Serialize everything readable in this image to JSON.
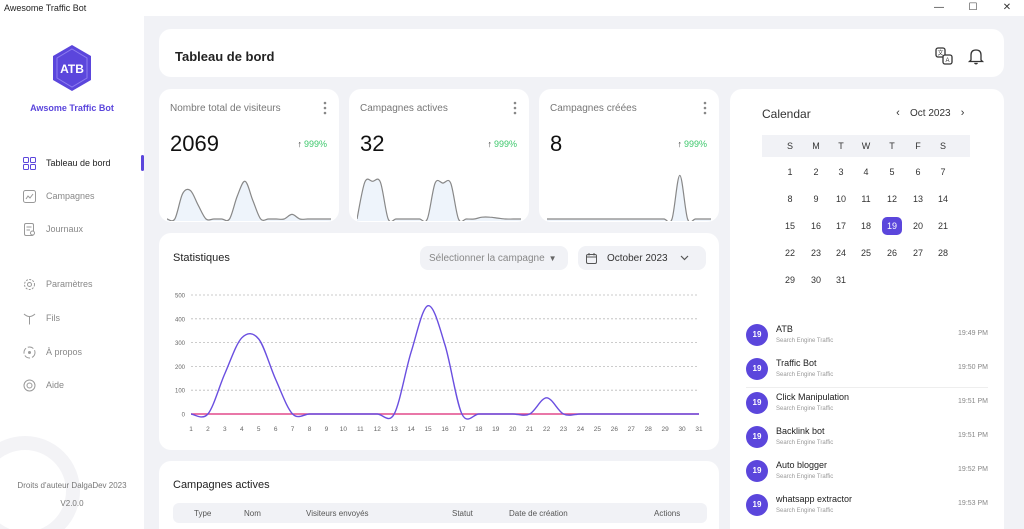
{
  "window": {
    "title": "Awesome Traffic Bot",
    "min": "—",
    "max": "☐",
    "close": "✕"
  },
  "sidebar": {
    "brand": "Awsome Traffic Bot",
    "logo_text": "ATB",
    "items": [
      {
        "label": "Tableau de bord",
        "icon": "dashboard-icon"
      },
      {
        "label": "Campagnes",
        "icon": "campaign-icon"
      },
      {
        "label": "Journaux",
        "icon": "logs-icon"
      },
      {
        "label": "Paramètres",
        "icon": "settings-icon"
      },
      {
        "label": "Fils",
        "icon": "threads-icon"
      },
      {
        "label": "À propos",
        "icon": "about-icon"
      },
      {
        "label": "Aide",
        "icon": "help-icon"
      }
    ],
    "copyright": "Droits d'auteur DalgaDev 2023",
    "version": "V2.0.0"
  },
  "header": {
    "title": "Tableau de bord",
    "icons": [
      "translate-icon",
      "bell-icon"
    ]
  },
  "stats": [
    {
      "label": "Nombre total de visiteurs",
      "value": "2069",
      "change": "999%",
      "spark": [
        0,
        0,
        55,
        62,
        30,
        0,
        0,
        0,
        0,
        50,
        82,
        40,
        0,
        0,
        0,
        0,
        10,
        0,
        0,
        0,
        0,
        0
      ]
    },
    {
      "label": "Campagnes actives",
      "value": "32",
      "change": "999%",
      "spark": [
        0,
        80,
        82,
        80,
        0,
        0,
        0,
        0,
        0,
        0,
        78,
        78,
        78,
        0,
        0,
        0,
        4,
        4,
        2,
        0,
        0,
        0
      ]
    },
    {
      "label": "Campagnes créées",
      "value": "8",
      "change": "999%",
      "spark": [
        0,
        0,
        0,
        0,
        0,
        0,
        0,
        0,
        0,
        0,
        0,
        0,
        0,
        0,
        0,
        0,
        0,
        95,
        0,
        0,
        0,
        0
      ]
    }
  ],
  "statistics": {
    "title": "Statistiques",
    "select_placeholder": "Sélectionner la campagne",
    "month": "October 2023"
  },
  "chart_data": {
    "type": "line",
    "x": [
      1,
      2,
      3,
      4,
      5,
      6,
      7,
      8,
      9,
      10,
      11,
      12,
      13,
      14,
      15,
      16,
      17,
      18,
      19,
      20,
      21,
      22,
      23,
      24,
      25,
      26,
      27,
      28,
      29,
      30,
      31
    ],
    "series": [
      {
        "values": [
          0,
          0,
          170,
          320,
          315,
          145,
          0,
          0,
          0,
          0,
          0,
          0,
          0,
          260,
          455,
          290,
          0,
          0,
          0,
          0,
          0,
          68,
          0,
          0,
          0,
          0,
          0,
          0,
          0,
          0,
          0
        ]
      },
      {
        "values": [
          0,
          0,
          0,
          0,
          0,
          0,
          0,
          0,
          0,
          0,
          0,
          0,
          0,
          0,
          0,
          0,
          0,
          0,
          0,
          0,
          0,
          0,
          0,
          0,
          0,
          0,
          0,
          0,
          0,
          0,
          0
        ]
      }
    ],
    "yticks": [
      0,
      100,
      200,
      300,
      400,
      500
    ],
    "ylim": [
      0,
      500
    ],
    "grid": true,
    "colors": [
      "#6a4fe0",
      "#e24a8b"
    ]
  },
  "campaigns": {
    "title": "Campagnes actives",
    "headers": [
      "Type",
      "Nom",
      "Visiteurs envoyés",
      "Statut",
      "Date de création",
      "Actions"
    ]
  },
  "calendar": {
    "title": "Calendar",
    "month": "Oct 2023",
    "prev": "‹",
    "next": "›",
    "weekdays": [
      "S",
      "M",
      "T",
      "W",
      "T",
      "F",
      "S"
    ],
    "weeks": [
      [
        "1",
        "2",
        "3",
        "4",
        "5",
        "6",
        "7"
      ],
      [
        "8",
        "9",
        "10",
        "11",
        "12",
        "13",
        "14"
      ],
      [
        "15",
        "16",
        "17",
        "18",
        "19",
        "20",
        "21"
      ],
      [
        "22",
        "23",
        "24",
        "25",
        "26",
        "27",
        "28"
      ],
      [
        "29",
        "30",
        "31",
        "",
        "",
        "",
        ""
      ]
    ],
    "today": "19"
  },
  "events": [
    {
      "day": "19",
      "title": "ATB",
      "subtitle": "Search Engine Traffic",
      "time": "19:49 PM"
    },
    {
      "day": "19",
      "title": "Traffic Bot",
      "subtitle": "Search Engine Traffic",
      "time": "19:50 PM"
    },
    {
      "day": "19",
      "title": "Click Manipulation",
      "subtitle": "Search Engine Traffic",
      "time": "19:51 PM"
    },
    {
      "day": "19",
      "title": "Backlink bot",
      "subtitle": "Search Engine Traffic",
      "time": "19:51 PM"
    },
    {
      "day": "19",
      "title": "Auto blogger",
      "subtitle": "Search Engine Traffic",
      "time": "19:52 PM"
    },
    {
      "day": "19",
      "title": "whatsapp extractor",
      "subtitle": "Search Engine Traffic",
      "time": "19:53 PM"
    }
  ]
}
